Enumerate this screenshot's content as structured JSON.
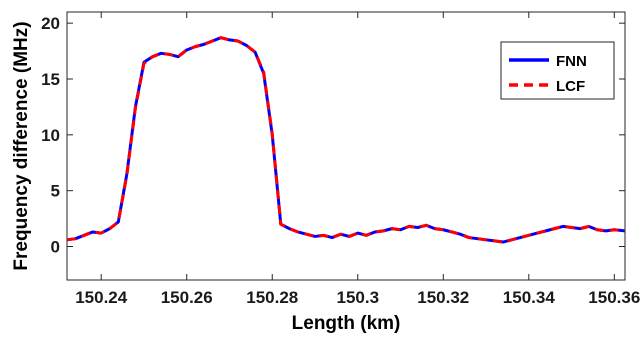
{
  "chart_data": {
    "type": "line",
    "title": "",
    "xlabel": "Length (km)",
    "ylabel": "Frequency difference (MHz)",
    "xlim": [
      150.232,
      150.3625
    ],
    "ylim": [
      -3,
      21
    ],
    "xticks": [
      150.24,
      150.26,
      150.28,
      150.3,
      150.32,
      150.34,
      150.36
    ],
    "xtick_labels": [
      "150.24",
      "150.26",
      "150.28",
      "150.3",
      "150.32",
      "150.34",
      "150.36"
    ],
    "yticks": [
      0,
      5,
      10,
      15,
      20
    ],
    "ytick_labels": [
      "0",
      "5",
      "10",
      "15",
      "20"
    ],
    "grid": false,
    "legend_position": "top-right",
    "series": [
      {
        "name": "FNN",
        "color": "#0000ff",
        "style": "solid",
        "x": [
          150.232,
          150.234,
          150.236,
          150.238,
          150.24,
          150.242,
          150.244,
          150.246,
          150.248,
          150.25,
          150.252,
          150.254,
          150.256,
          150.258,
          150.26,
          150.262,
          150.264,
          150.266,
          150.268,
          150.27,
          150.272,
          150.274,
          150.276,
          150.278,
          150.28,
          150.282,
          150.284,
          150.286,
          150.288,
          150.29,
          150.292,
          150.294,
          150.296,
          150.298,
          150.3,
          150.302,
          150.304,
          150.306,
          150.308,
          150.31,
          150.312,
          150.314,
          150.316,
          150.318,
          150.32,
          150.322,
          150.324,
          150.326,
          150.328,
          150.33,
          150.332,
          150.334,
          150.336,
          150.338,
          150.34,
          150.342,
          150.344,
          150.346,
          150.348,
          150.35,
          150.352,
          150.354,
          150.356,
          150.358,
          150.36,
          150.3625
        ],
        "y": [
          0.6,
          0.7,
          1.0,
          1.3,
          1.2,
          1.6,
          2.2,
          6.5,
          12.5,
          16.5,
          17.0,
          17.3,
          17.2,
          17.0,
          17.6,
          17.9,
          18.1,
          18.4,
          18.7,
          18.5,
          18.4,
          18.0,
          17.4,
          15.5,
          10.0,
          2.0,
          1.6,
          1.3,
          1.1,
          0.9,
          1.0,
          0.8,
          1.1,
          0.9,
          1.2,
          1.0,
          1.3,
          1.4,
          1.6,
          1.5,
          1.8,
          1.7,
          1.9,
          1.6,
          1.5,
          1.3,
          1.1,
          0.8,
          0.7,
          0.6,
          0.5,
          0.4,
          0.6,
          0.8,
          1.0,
          1.2,
          1.4,
          1.6,
          1.8,
          1.7,
          1.6,
          1.8,
          1.5,
          1.4,
          1.5,
          1.4
        ]
      },
      {
        "name": "LCF",
        "color": "#ff0000",
        "style": "dashed",
        "x": [
          150.232,
          150.234,
          150.236,
          150.238,
          150.24,
          150.242,
          150.244,
          150.246,
          150.248,
          150.25,
          150.252,
          150.254,
          150.256,
          150.258,
          150.26,
          150.262,
          150.264,
          150.266,
          150.268,
          150.27,
          150.272,
          150.274,
          150.276,
          150.278,
          150.28,
          150.282,
          150.284,
          150.286,
          150.288,
          150.29,
          150.292,
          150.294,
          150.296,
          150.298,
          150.3,
          150.302,
          150.304,
          150.306,
          150.308,
          150.31,
          150.312,
          150.314,
          150.316,
          150.318,
          150.32,
          150.322,
          150.324,
          150.326,
          150.328,
          150.33,
          150.332,
          150.334,
          150.336,
          150.338,
          150.34,
          150.342,
          150.344,
          150.346,
          150.348,
          150.35,
          150.352,
          150.354,
          150.356,
          150.358,
          150.36,
          150.3625
        ],
        "y": [
          0.6,
          0.7,
          1.0,
          1.3,
          1.2,
          1.6,
          2.2,
          6.4,
          12.4,
          16.4,
          17.0,
          17.3,
          17.2,
          17.0,
          17.6,
          17.9,
          18.1,
          18.4,
          18.7,
          18.5,
          18.4,
          18.0,
          17.4,
          15.6,
          10.1,
          2.0,
          1.6,
          1.3,
          1.1,
          0.9,
          1.0,
          0.8,
          1.1,
          0.9,
          1.2,
          1.0,
          1.3,
          1.4,
          1.6,
          1.5,
          1.8,
          1.7,
          1.9,
          1.6,
          1.5,
          1.3,
          1.1,
          0.8,
          0.7,
          0.6,
          0.5,
          0.4,
          0.6,
          0.8,
          1.0,
          1.2,
          1.4,
          1.6,
          1.8,
          1.7,
          1.6,
          1.8,
          1.5,
          1.4,
          1.5,
          1.4
        ]
      }
    ]
  }
}
